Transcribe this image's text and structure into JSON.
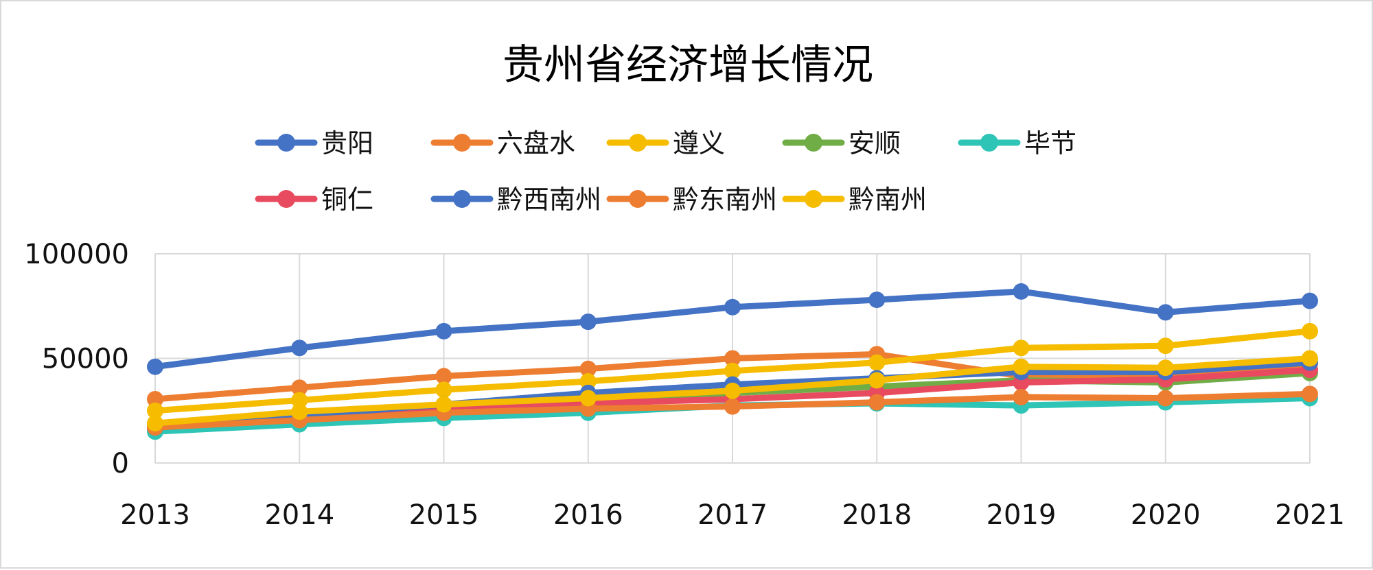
{
  "chart_data": {
    "type": "line",
    "title": "贵州省经济增长情况",
    "xlabel": "",
    "ylabel": "",
    "categories": [
      "2013",
      "2014",
      "2015",
      "2016",
      "2017",
      "2018",
      "2019",
      "2020",
      "2021"
    ],
    "ylim": [
      0,
      100000
    ],
    "yticks": [
      "0",
      "50000",
      "100000"
    ],
    "grid": true,
    "legend_position": "top",
    "series": [
      {
        "name": "贵阳",
        "color": "#4472C4",
        "values": [
          46000,
          55000,
          63000,
          67500,
          74500,
          78000,
          82000,
          72000,
          77500
        ]
      },
      {
        "name": "六盘水",
        "color": "#ED7D31",
        "values": [
          30500,
          36000,
          41500,
          45000,
          50000,
          52000,
          41500,
          41000,
          47500
        ]
      },
      {
        "name": "遵义",
        "color": "#F5BC00",
        "values": [
          25000,
          30000,
          35000,
          39000,
          44000,
          48000,
          55000,
          56000,
          63000
        ]
      },
      {
        "name": "安顺",
        "color": "#70AD47",
        "values": [
          17500,
          22000,
          27000,
          30000,
          33500,
          36500,
          39500,
          38500,
          43000
        ]
      },
      {
        "name": "毕节",
        "color": "#2EC4B6",
        "values": [
          15000,
          18500,
          21500,
          24000,
          27500,
          28500,
          27500,
          29000,
          31000
        ]
      },
      {
        "name": "铜仁",
        "color": "#E84A5F",
        "values": [
          17000,
          21000,
          25000,
          28500,
          30500,
          33500,
          38500,
          40000,
          44500
        ]
      },
      {
        "name": "黔西南州",
        "color": "#4472C4",
        "values": [
          17000,
          22500,
          28000,
          33500,
          37500,
          40500,
          43500,
          43500,
          48000
        ]
      },
      {
        "name": "黔东南州",
        "color": "#ED7D31",
        "values": [
          17000,
          20500,
          24000,
          26000,
          27000,
          29000,
          31500,
          31000,
          33000
        ]
      },
      {
        "name": "黔南州",
        "color": "#F5BC00",
        "values": [
          19000,
          24500,
          28000,
          31000,
          34500,
          39500,
          46000,
          45500,
          50000
        ]
      }
    ]
  }
}
